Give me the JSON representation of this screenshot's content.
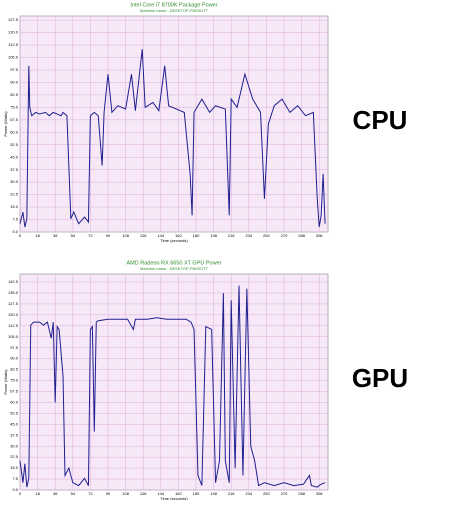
{
  "chart_data": [
    {
      "type": "line",
      "title": "Intel Core i7 8700K Package Power",
      "subtitle": "Machine name : DESKTOP-P8G0UTT",
      "side_label": "CPU",
      "x_label": "Time (seconds)",
      "y_label": "Power (Watts)",
      "grid": true,
      "xlim": [
        0,
        315
      ],
      "xticks": [
        0,
        18,
        36,
        54,
        72,
        90,
        108,
        126,
        144,
        162,
        180,
        198,
        216,
        234,
        252,
        270,
        288,
        306
      ],
      "ylim": [
        0,
        130
      ],
      "yticks": [
        {
          "value": 0,
          "label": "0.0"
        },
        7.5,
        {
          "value": 15,
          "label": "15.0"
        },
        22.5,
        {
          "value": 30,
          "label": "30.0"
        },
        37.5,
        {
          "value": 45,
          "label": "45.0"
        },
        52.5,
        {
          "value": 60,
          "label": "60.0"
        },
        67.5,
        {
          "value": 75,
          "label": "75.0"
        },
        82.5,
        {
          "value": 90,
          "label": "90.0"
        },
        97.5,
        {
          "value": 105,
          "label": "105.0"
        },
        112.5,
        {
          "value": 120,
          "label": "120.0"
        },
        127.5
      ],
      "series": [
        {
          "color": "#1f1f8f",
          "x": [
            0,
            3,
            5,
            7,
            9,
            10,
            12,
            16,
            20,
            26,
            30,
            34,
            38,
            42,
            44,
            48,
            52,
            55,
            60,
            66,
            70,
            72,
            76,
            80,
            84,
            86,
            90,
            94,
            100,
            108,
            114,
            118,
            125,
            128,
            136,
            142,
            148,
            152,
            160,
            168,
            174,
            176,
            178,
            186,
            194,
            200,
            210,
            214,
            216,
            222,
            230,
            238,
            246,
            250,
            254,
            260,
            268,
            276,
            284,
            292,
            300,
            304,
            306,
            308,
            310,
            312
          ],
          "values": [
            5,
            12,
            3,
            8,
            100,
            75,
            70,
            72,
            71,
            72,
            70,
            72,
            71,
            70,
            72,
            70,
            8,
            12,
            5,
            9,
            6,
            70,
            72,
            70,
            40,
            72,
            95,
            72,
            76,
            74,
            95,
            73,
            110,
            75,
            78,
            73,
            100,
            76,
            74,
            72,
            35,
            10,
            72,
            80,
            72,
            76,
            74,
            10,
            80,
            75,
            95,
            80,
            72,
            20,
            65,
            76,
            80,
            72,
            76,
            70,
            72,
            20,
            3,
            10,
            35,
            5
          ]
        }
      ]
    },
    {
      "type": "line",
      "title": "AMD Radeon RX 6650 XT GPU Power",
      "subtitle": "Machine name : DESKTOP-P8G0UTT",
      "side_label": "GPU",
      "x_label": "Time (seconds)",
      "y_label": "Power (Watts)",
      "grid": true,
      "xlim": [
        0,
        315
      ],
      "xticks": [
        0,
        18,
        36,
        54,
        72,
        90,
        108,
        126,
        144,
        162,
        180,
        198,
        216,
        234,
        252,
        270,
        288,
        306
      ],
      "ylim": [
        0,
        148
      ],
      "yticks": [
        {
          "value": 0,
          "label": "0.0"
        },
        7.5,
        {
          "value": 15,
          "label": "15.0"
        },
        22.5,
        {
          "value": 30,
          "label": "30.0"
        },
        37.5,
        {
          "value": 45,
          "label": "45.0"
        },
        52.5,
        {
          "value": 60,
          "label": "60.0"
        },
        67.5,
        {
          "value": 75,
          "label": "75.0"
        },
        82.5,
        {
          "value": 90,
          "label": "90.0"
        },
        97.5,
        {
          "value": 105,
          "label": "105.0"
        },
        112.5,
        {
          "value": 120,
          "label": "120.0"
        },
        127.5,
        {
          "value": 135,
          "label": "135.0"
        },
        142.5
      ],
      "series": [
        {
          "color": "#1f1f8f",
          "x": [
            0,
            3,
            5,
            7,
            9,
            11,
            14,
            20,
            24,
            28,
            32,
            34,
            36,
            38,
            40,
            44,
            46,
            50,
            54,
            60,
            66,
            70,
            72,
            74,
            76,
            78,
            80,
            90,
            100,
            110,
            116,
            118,
            130,
            140,
            150,
            160,
            170,
            175,
            178,
            182,
            186,
            190,
            196,
            200,
            204,
            208,
            210,
            214,
            216,
            220,
            224,
            228,
            232,
            236,
            240,
            244,
            250,
            260,
            270,
            280,
            290,
            296,
            298,
            304,
            308,
            312
          ],
          "values": [
            20,
            5,
            18,
            2,
            8,
            113,
            115,
            115,
            113,
            115,
            104,
            115,
            60,
            112,
            110,
            78,
            10,
            15,
            5,
            3,
            8,
            3,
            110,
            112,
            40,
            115,
            116,
            117,
            117,
            117,
            110,
            117,
            117,
            118,
            117,
            117,
            117,
            115,
            110,
            10,
            3,
            112,
            110,
            5,
            20,
            135,
            20,
            5,
            130,
            15,
            140,
            10,
            138,
            30,
            20,
            3,
            5,
            3,
            5,
            3,
            4,
            10,
            3,
            2,
            4,
            5
          ]
        }
      ]
    }
  ]
}
